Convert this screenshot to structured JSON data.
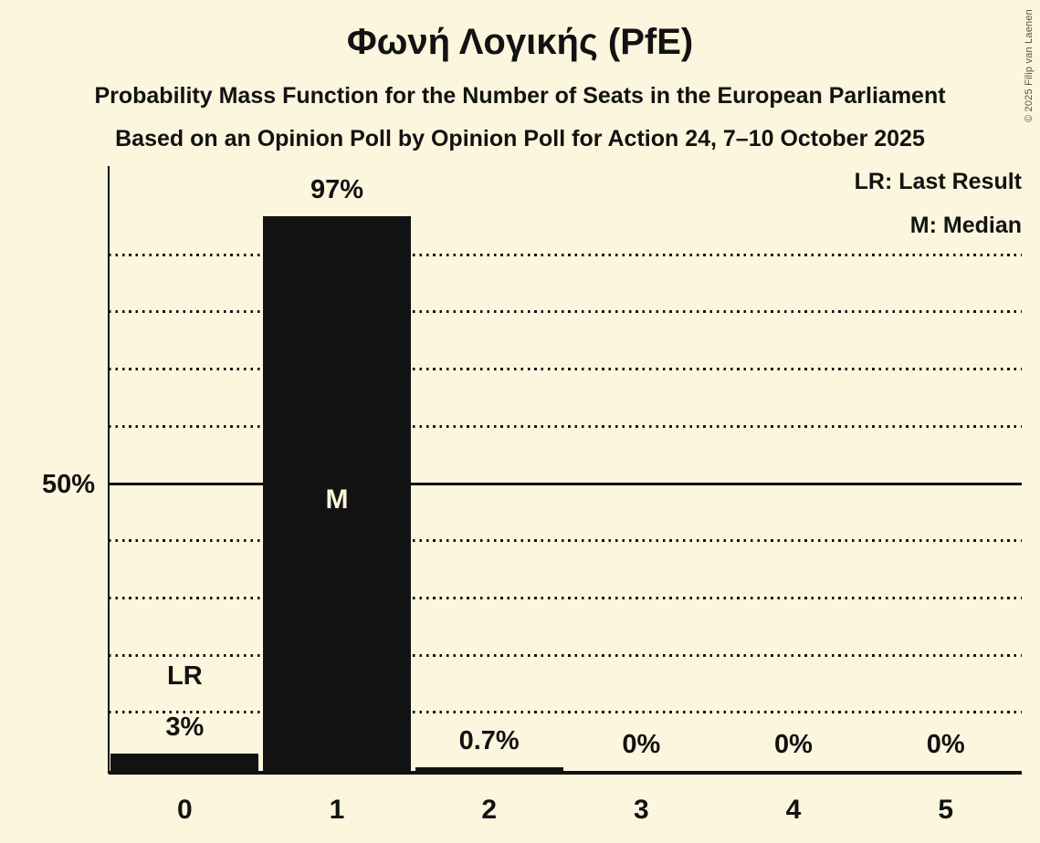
{
  "header": {
    "title": "Φωνή Λογικής (PfE)",
    "subtitle1": "Probability Mass Function for the Number of Seats in the European Parliament",
    "subtitle2": "Based on an Opinion Poll by Opinion Poll for Action 24, 7–10 October 2025"
  },
  "legend": {
    "lr": "LR: Last Result",
    "m": "M: Median"
  },
  "copyright": "© 2025 Filip van Laenen",
  "colors": {
    "background": "#FBF6DD",
    "ink": "#121212",
    "bar": "#121212",
    "median_label": "#FBF6DD"
  },
  "chart_data": {
    "type": "bar",
    "title": "Φωνή Λογικής (PfE)",
    "categories": [
      "0",
      "1",
      "2",
      "3",
      "4",
      "5"
    ],
    "values": [
      3,
      97,
      0.7,
      0,
      0,
      0
    ],
    "value_labels": [
      "3%",
      "97%",
      "0.7%",
      "0%",
      "0%",
      "0%"
    ],
    "xlabel": "",
    "ylabel": "",
    "ylim": [
      0,
      105
    ],
    "y_tick_label": "50%",
    "y_tick_value": 50,
    "gridlines": {
      "dotted": [
        10,
        20,
        30,
        40,
        60,
        70,
        80,
        90
      ],
      "solid": [
        50
      ]
    },
    "annotations": [
      {
        "type": "last_result",
        "category_index": 0,
        "label": "LR"
      },
      {
        "type": "median",
        "category_index": 1,
        "label": "M"
      }
    ],
    "legend_position": "top-right",
    "grid": true
  }
}
